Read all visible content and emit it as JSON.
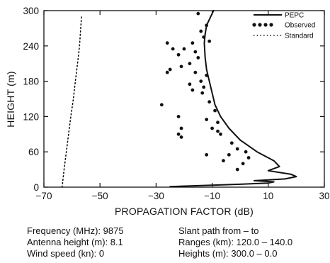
{
  "chart_data": {
    "type": "line",
    "xlabel": "PROPAGATION FACTOR (dB)",
    "ylabel": "HEIGHT (m)",
    "xlim": [
      -70,
      30
    ],
    "ylim": [
      0,
      300
    ],
    "xticks": [
      -70,
      -50,
      -30,
      -10,
      10,
      30
    ],
    "yticks": [
      0,
      60,
      120,
      180,
      240,
      300
    ],
    "xtick_labels": [
      "−70",
      "−50",
      "−30",
      "−10",
      "10",
      "30"
    ],
    "ytick_labels": [
      "0",
      "60",
      "120",
      "180",
      "240",
      "300"
    ],
    "legend_position": "top-right",
    "series": [
      {
        "name": "PEPC",
        "style": "solid-line",
        "x": [
          -9.5,
          -10.5,
          -12,
          -12.5,
          -12.8,
          -12.5,
          -12,
          -11,
          -10,
          -9,
          -7,
          -4,
          0,
          6,
          12,
          14,
          10,
          18,
          20,
          16,
          5,
          12,
          10,
          0,
          -12,
          -25
        ],
        "y": [
          300,
          290,
          275,
          260,
          245,
          220,
          200,
          180,
          160,
          140,
          120,
          100,
          80,
          60,
          45,
          35,
          28,
          22,
          18,
          14,
          11,
          9,
          7,
          5,
          3,
          1
        ]
      },
      {
        "name": "Observed",
        "style": "dots",
        "x": [
          -15,
          -12,
          -13,
          -11,
          -14,
          -17,
          -20,
          -16,
          -15,
          -26,
          -24,
          -22,
          -18,
          -25,
          -21,
          -16,
          -12,
          -18,
          -14,
          -13,
          -13.5,
          -17,
          -26,
          -28,
          -11,
          -9,
          -22,
          -21,
          -22,
          -21,
          -12,
          -8,
          -10,
          -8,
          -7,
          -3,
          2,
          -4,
          -1,
          3,
          -6,
          1,
          -1,
          -12
        ],
        "y": [
          295,
          275,
          255,
          248,
          265,
          245,
          235,
          230,
          220,
          245,
          235,
          225,
          210,
          200,
          205,
          195,
          190,
          175,
          180,
          170,
          160,
          165,
          195,
          140,
          145,
          130,
          120,
          100,
          90,
          85,
          115,
          110,
          100,
          95,
          90,
          75,
          60,
          55,
          65,
          50,
          45,
          40,
          30,
          55
        ]
      },
      {
        "name": "Standard",
        "style": "dotted-line",
        "x": [
          -63.5,
          -62.8,
          -62,
          -61.2,
          -60.4,
          -59.5,
          -58.8,
          -58,
          -57.3,
          -56.6
        ],
        "y": [
          0,
          30,
          60,
          90,
          120,
          150,
          180,
          210,
          240,
          290
        ]
      }
    ]
  },
  "parameters": {
    "frequency": "Frequency (MHz):  9875",
    "antenna_height": "Antenna height (m):  8.1",
    "wind_speed": "Wind speed (kn):  0",
    "slant_path": "Slant path from – to",
    "ranges": "Ranges (km):  120.0 – 140.0",
    "heights": "Heights (m):  300.0 – 0.0"
  }
}
